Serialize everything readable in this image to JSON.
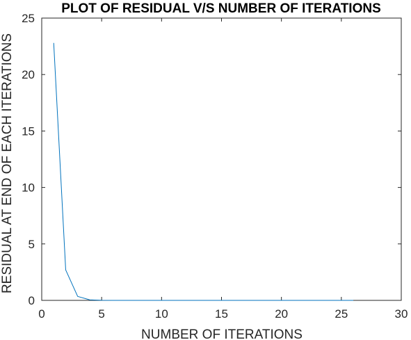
{
  "chart_data": {
    "type": "line",
    "title": "PLOT OF RESIDUAL V/S NUMBER OF ITERATIONS",
    "xlabel": "NUMBER OF ITERATIONS",
    "ylabel": "RESIDUAL AT END OF EACH ITERATIONS",
    "xlim": [
      0,
      30
    ],
    "ylim": [
      0,
      25
    ],
    "xticks": [
      0,
      5,
      10,
      15,
      20,
      25,
      30
    ],
    "yticks": [
      0,
      5,
      10,
      15,
      20,
      25
    ],
    "grid": false,
    "legend": "none",
    "series": [
      {
        "color": "#0072BD",
        "x": [
          1,
          2,
          3,
          4,
          5,
          6,
          7,
          8,
          9,
          10,
          11,
          12,
          13,
          14,
          15,
          16,
          17,
          18,
          19,
          20,
          21,
          22,
          23,
          24,
          25,
          26
        ],
        "y": [
          22.8,
          2.7,
          0.35,
          0.05,
          0.01,
          0,
          0,
          0,
          0,
          0,
          0,
          0,
          0,
          0,
          0,
          0,
          0,
          0,
          0,
          0,
          0,
          0,
          0,
          0,
          0,
          0
        ]
      }
    ]
  }
}
